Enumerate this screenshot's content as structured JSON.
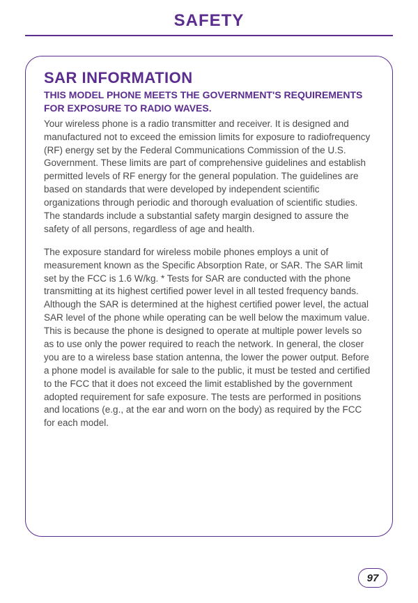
{
  "colors": {
    "brand": "#5b2d8e",
    "text": "#4a4a4a",
    "background": "#ffffff"
  },
  "typography": {
    "page_title_size": 24,
    "heading_size": 22,
    "subheading_size": 14,
    "body_size": 13.5,
    "body_line_height": 1.4
  },
  "page": {
    "title": "SAFETY",
    "number": "97"
  },
  "card": {
    "border_radius": 24,
    "heading": "SAR INFORMATION",
    "subheading": "THIS MODEL PHONE MEETS THE GOVERNMENT'S REQUIREMENTS FOR EXPOSURE TO RADIO WAVES.",
    "paragraphs": [
      "Your wireless phone is a radio transmitter and receiver.  It is designed and manufactured not to exceed the emission limits for exposure to radiofrequency (RF) energy set by the Federal Communications Commission of the U.S. Government.  These limits are part of comprehensive guidelines and establish permitted levels of RF energy for the general population.  The guidelines are based on standards that were developed by independent scientific organizations through periodic and thorough evaluation of scientific studies. The standards include a substantial safety margin designed to assure the safety of all persons, regardless of age and health.",
      "The exposure standard for wireless mobile phones employs a unit of measurement known as the Specific Absorption Rate, or SAR. The SAR limit set by the FCC is 1.6 W/kg.  * Tests for SAR are conducted with the phone transmitting at its highest certified power level in all tested frequency bands. Although the SAR is determined at the highest certified power level, the actual SAR level of the phone while operating can be well below the maximum value. This is because the phone is designed to operate at multiple power levels so as to use only the power required to reach the network.  In general, the closer you are to a wireless base station antenna, the lower the power output.  Before a phone model is available for sale to the public, it must be tested and certified to the FCC that it does not exceed the limit established by the government adopted requirement for safe exposure.  The tests are performed in positions and locations (e.g., at the ear and worn on the body) as required by the FCC for each model."
    ]
  }
}
